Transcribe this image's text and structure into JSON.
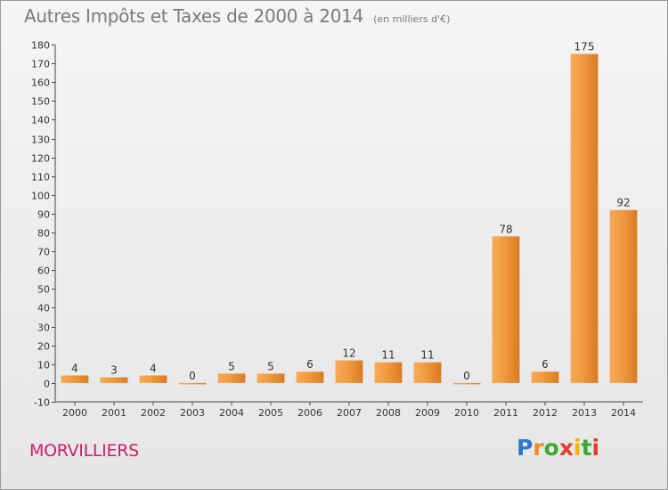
{
  "chart_data": {
    "type": "bar",
    "title": "Autres Impôts et Taxes de 2000 à 2014",
    "subtitle": "(en milliers d'€)",
    "categories": [
      "2000",
      "2001",
      "2002",
      "2003",
      "2004",
      "2005",
      "2006",
      "2007",
      "2008",
      "2009",
      "2010",
      "2011",
      "2012",
      "2013",
      "2014"
    ],
    "values": [
      4,
      3,
      4,
      0,
      5,
      5,
      6,
      12,
      11,
      11,
      0,
      78,
      6,
      175,
      92
    ],
    "ylim": [
      -10,
      180
    ],
    "yticks": [
      -10,
      0,
      10,
      20,
      30,
      40,
      50,
      60,
      70,
      80,
      90,
      100,
      110,
      120,
      130,
      140,
      150,
      160,
      170,
      180
    ],
    "grid": false,
    "bar_color": "#f09a40"
  },
  "location": "MORVILLIERS",
  "brand": {
    "letters": [
      "P",
      "r",
      "o",
      "x",
      "i",
      "t",
      "i"
    ],
    "colors": [
      "#2f78c4",
      "#f08a24",
      "#3fa535",
      "#e23d2a",
      "#f0b400",
      "#3fa535",
      "#e23d2a"
    ]
  }
}
